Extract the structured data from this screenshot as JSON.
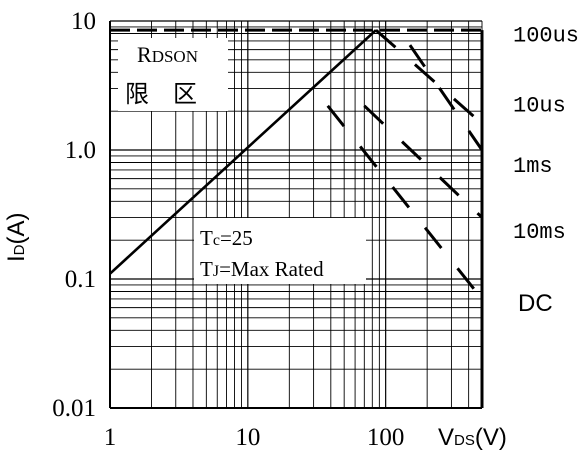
{
  "chart_data": {
    "type": "line",
    "x_scale": "log",
    "y_scale": "log",
    "xlim": [
      1,
      500
    ],
    "ylim": [
      0.01,
      10
    ],
    "grid": true,
    "xticks": [
      "1",
      "10",
      "100"
    ],
    "yticks": [
      "10",
      "1.0",
      "0.1",
      "0.01"
    ],
    "xlabel": {
      "main": "V",
      "sub": "DS",
      "unit": "(V)"
    },
    "ylabel": {
      "main": "I",
      "sub": "D",
      "unit": "(A)"
    },
    "rdson_label": {
      "main": "R",
      "sub": "DSON",
      "line2": "限　区"
    },
    "conditions": [
      {
        "main": "T",
        "sub": "c",
        "rest": "=25"
      },
      {
        "main": "T",
        "sub": "J",
        "rest": "=Max Rated"
      }
    ],
    "limits": {
      "current_max": 8.5,
      "voltage_max": 500,
      "rdson_line": [
        [
          1,
          0.11
        ],
        [
          85,
          8.5
        ]
      ]
    },
    "pulse_series": [
      {
        "name": "100us",
        "points": [
          [
            85,
            8.5
          ],
          [
            500,
            1.6
          ]
        ]
      },
      {
        "name": "10us",
        "points": [
          [
            150,
            6.5
          ],
          [
            500,
            1.0
          ]
        ]
      },
      {
        "name": "1ms",
        "points": [
          [
            70,
            2.2
          ],
          [
            500,
            0.3
          ]
        ]
      },
      {
        "name": "10ms",
        "points": [
          [
            38,
            2.2
          ],
          [
            500,
            0.07
          ]
        ]
      }
    ],
    "right_labels": [
      {
        "text": "100us",
        "y": 8.0,
        "font": "mono"
      },
      {
        "text": "10us",
        "y": 2.3,
        "font": "mono"
      },
      {
        "text": "1ms",
        "y": 0.78,
        "font": "mono"
      },
      {
        "text": "10ms",
        "y": 0.24,
        "font": "mono"
      },
      {
        "text": "DC",
        "y": 0.065,
        "font": "sans"
      }
    ]
  }
}
